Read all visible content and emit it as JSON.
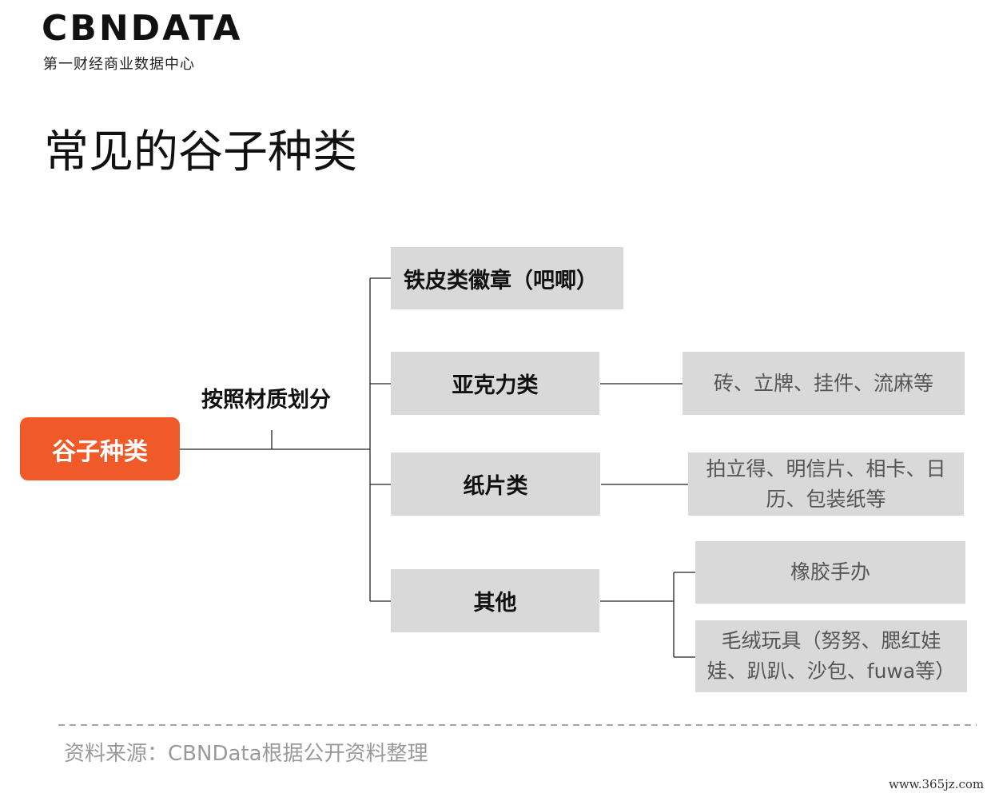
{
  "logo": {
    "name": "CBNDATA",
    "tagline": "第一财经商业数据中心"
  },
  "title": "常见的谷子种类",
  "root": {
    "label": "谷子种类",
    "edge_label": "按照材质划分"
  },
  "categories": [
    {
      "label": "铁皮类徽章（吧唧）",
      "items": []
    },
    {
      "label": "亚克力类",
      "items": [
        "砖、立牌、挂件、流麻等"
      ]
    },
    {
      "label": "纸片类",
      "items": [
        "拍立得、明信片、相卡、日历、包装纸等"
      ]
    },
    {
      "label": "其他",
      "items": [
        "橡胶手办",
        "毛绒玩具（努努、腮红娃娃、趴趴、沙包、fuwa等）"
      ]
    }
  ],
  "source": "资料来源：CBNData根据公开资料整理",
  "footer": "www.365jz.com"
}
